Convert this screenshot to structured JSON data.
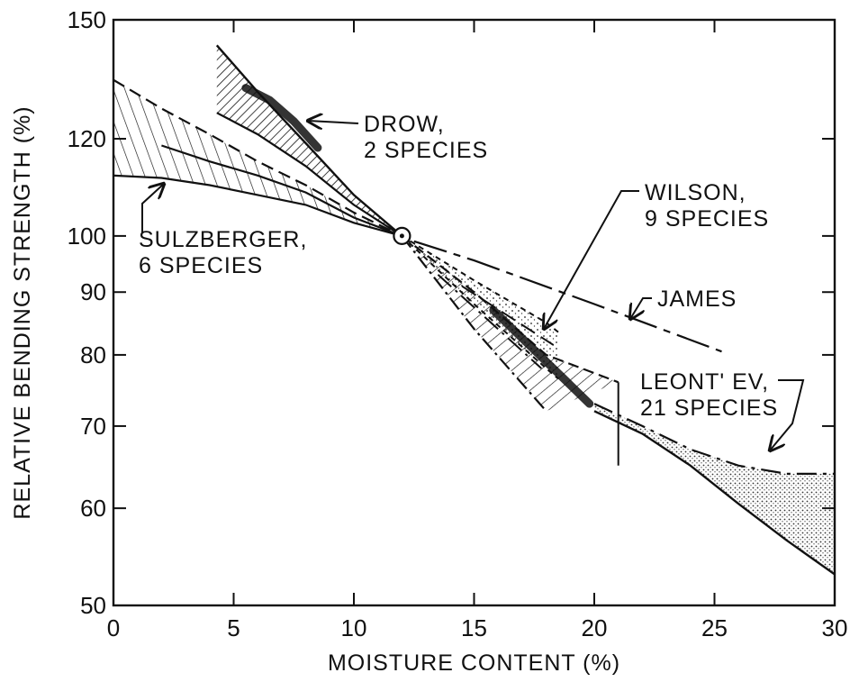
{
  "chart_data": {
    "type": "line",
    "title": "",
    "xlabel": "MOISTURE CONTENT (%)",
    "ylabel": "RELATIVE BENDING STRENGTH (%)",
    "xlim": [
      0,
      30
    ],
    "ylim": [
      50,
      150
    ],
    "yscale": "log",
    "grid": false,
    "x_ticks": [
      0,
      5,
      10,
      15,
      20,
      25,
      30
    ],
    "x_tick_labels": [
      "0",
      "5",
      "10",
      "15",
      "20",
      "25",
      "30"
    ],
    "y_ticks": [
      50,
      60,
      70,
      80,
      90,
      100,
      120,
      150
    ],
    "y_tick_labels": [
      "50",
      "60",
      "70",
      "80",
      "90",
      "100",
      "120",
      "150"
    ],
    "reference_point": {
      "x": 12,
      "y": 100
    },
    "series": [
      {
        "name": "SULZBERGER, 6 SPECIES",
        "upper": [
          [
            0,
            134
          ],
          [
            2,
            127
          ],
          [
            4,
            121
          ],
          [
            6,
            115
          ],
          [
            8,
            110
          ],
          [
            10,
            104.5
          ],
          [
            12,
            100
          ]
        ],
        "lower": [
          [
            0,
            112
          ],
          [
            2,
            111.5
          ],
          [
            4,
            110
          ],
          [
            6,
            108
          ],
          [
            8,
            106
          ],
          [
            10,
            102.5
          ],
          [
            12,
            100
          ]
        ],
        "middle": [
          [
            2,
            118.5
          ],
          [
            4,
            115
          ],
          [
            6,
            112
          ],
          [
            8,
            108.5
          ],
          [
            10,
            103.5
          ],
          [
            12,
            100
          ]
        ]
      },
      {
        "name": "DROW, 2 SPECIES",
        "upper": [
          [
            4.3,
            143
          ],
          [
            6,
            131
          ],
          [
            8,
            119
          ],
          [
            10,
            108
          ],
          [
            12,
            100
          ]
        ],
        "lower": [
          [
            4.3,
            126
          ],
          [
            6,
            121
          ],
          [
            8,
            114
          ],
          [
            10,
            106
          ],
          [
            12,
            100
          ]
        ],
        "core": [
          [
            5.5,
            132
          ],
          [
            6.5,
            129
          ],
          [
            7.5,
            124
          ],
          [
            8.5,
            118
          ]
        ]
      },
      {
        "name": "WILSON, 9 SPECIES",
        "upper": [
          [
            12,
            100
          ],
          [
            15,
            92
          ],
          [
            18,
            85
          ],
          [
            18.5,
            83.5
          ]
        ],
        "lower": [
          [
            12,
            100
          ],
          [
            15,
            88
          ],
          [
            18,
            78
          ],
          [
            18.5,
            76.5
          ]
        ]
      },
      {
        "name": "JAMES",
        "values": [
          [
            12.5,
            99
          ],
          [
            15,
            95.5
          ],
          [
            20,
            88
          ],
          [
            25.3,
            80.5
          ]
        ]
      },
      {
        "name": "LEONT'EV, 21 SPECIES",
        "upper": [
          [
            12,
            100
          ],
          [
            15,
            90
          ],
          [
            18,
            80
          ],
          [
            21,
            76
          ],
          [
            24,
            67
          ],
          [
            27,
            64
          ],
          [
            30,
            64
          ]
        ],
        "lower": [
          [
            12,
            100
          ],
          [
            15,
            84
          ],
          [
            18,
            72
          ],
          [
            21,
            65
          ],
          [
            22,
            70
          ],
          [
            25,
            62
          ],
          [
            28,
            56
          ],
          [
            30,
            53
          ]
        ],
        "shaded_upper": [
          [
            20,
            73
          ],
          [
            22,
            70
          ],
          [
            24,
            67
          ],
          [
            26,
            65
          ],
          [
            28,
            64
          ],
          [
            30,
            64
          ]
        ],
        "shaded_lower": [
          [
            20,
            72
          ],
          [
            22,
            69
          ],
          [
            24,
            65
          ],
          [
            26,
            60.5
          ],
          [
            28,
            56.5
          ],
          [
            30,
            53
          ]
        ]
      }
    ],
    "annotations": [
      {
        "line1": "DROW,",
        "line2": "2 SPECIES"
      },
      {
        "line1": "SULZBERGER,",
        "line2": "6 SPECIES"
      },
      {
        "line1": "WILSON,",
        "line2": "9 SPECIES"
      },
      {
        "line1": "JAMES",
        "line2": ""
      },
      {
        "line1": "LEONT' EV,",
        "line2": "21 SPECIES"
      }
    ]
  }
}
